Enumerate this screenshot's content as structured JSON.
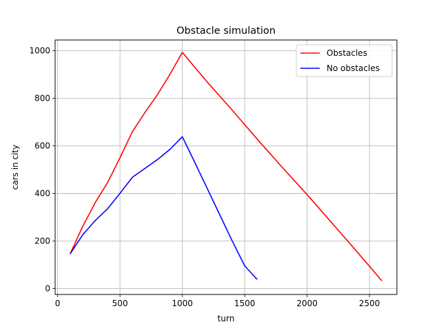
{
  "chart_data": {
    "type": "line",
    "title": "Obstacle simulation",
    "xlabel": "turn",
    "ylabel": "cars in city",
    "xlim": [
      -20,
      2720
    ],
    "ylim": [
      -25,
      1045
    ],
    "xticks": [
      0,
      500,
      1000,
      1500,
      2000,
      2500
    ],
    "yticks": [
      0,
      200,
      400,
      600,
      800,
      1000
    ],
    "grid": true,
    "legend": "top-right",
    "series": [
      {
        "name": "Obstacles",
        "color": "#ff0000",
        "x": [
          100,
          200,
          300,
          400,
          500,
          600,
          700,
          800,
          900,
          1000,
          1100,
          1200,
          1400,
          1600,
          1800,
          2000,
          2200,
          2400,
          2600
        ],
        "y": [
          145,
          260,
          360,
          445,
          550,
          660,
          740,
          815,
          900,
          993,
          930,
          868,
          750,
          628,
          510,
          395,
          275,
          155,
          32
        ]
      },
      {
        "name": "No obstacles",
        "color": "#0000ff",
        "x": [
          100,
          200,
          300,
          400,
          500,
          600,
          700,
          800,
          900,
          1000,
          1100,
          1200,
          1300,
          1400,
          1500,
          1600
        ],
        "y": [
          145,
          225,
          285,
          335,
          400,
          468,
          505,
          542,
          585,
          638,
          530,
          420,
          310,
          200,
          95,
          38
        ]
      }
    ]
  }
}
